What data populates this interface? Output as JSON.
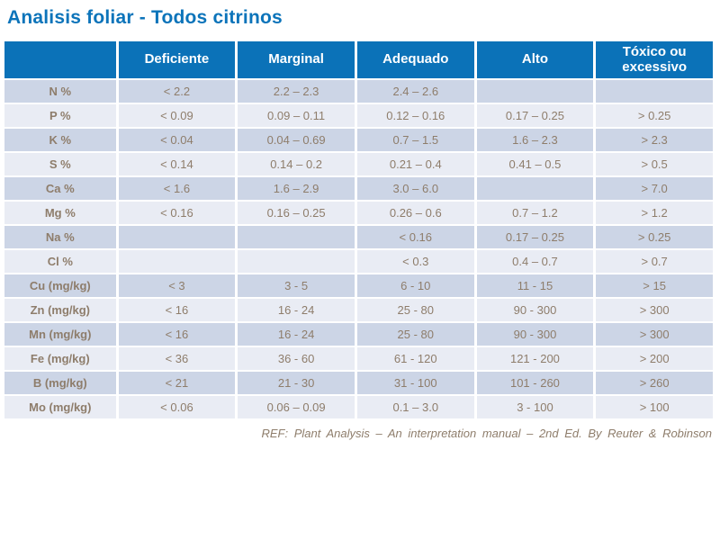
{
  "page": {
    "title": "Analisis foliar - Todos citrinos",
    "footer": "REF: Plant Analysis – An interpretation manual – 2nd Ed. By Reuter & Robinson"
  },
  "colors": {
    "title": "#0c74ba",
    "header_bg": "#0b72b8",
    "row_dark": "#ccd5e6",
    "row_light": "#e9ecf4",
    "text": "#8e7d6b"
  },
  "table": {
    "columns": [
      "Deficiente",
      "Marginal",
      "Adequado",
      "Alto",
      "Tóxico ou excessivo"
    ],
    "rows": [
      {
        "label": "N %",
        "values": [
          "< 2.2",
          "2.2 – 2.3",
          "2.4 – 2.6",
          "",
          ""
        ]
      },
      {
        "label": "P %",
        "values": [
          "< 0.09",
          "0.09 – 0.11",
          "0.12 – 0.16",
          "0.17 – 0.25",
          "> 0.25"
        ]
      },
      {
        "label": "K %",
        "values": [
          "< 0.04",
          "0.04 – 0.69",
          "0.7 – 1.5",
          "1.6 – 2.3",
          "> 2.3"
        ]
      },
      {
        "label": "S %",
        "values": [
          "< 0.14",
          "0.14 – 0.2",
          "0.21 – 0.4",
          "0.41 – 0.5",
          "> 0.5"
        ]
      },
      {
        "label": "Ca %",
        "values": [
          "< 1.6",
          "1.6 – 2.9",
          "3.0 – 6.0",
          "",
          "> 7.0"
        ]
      },
      {
        "label": "Mg %",
        "values": [
          "< 0.16",
          "0.16 – 0.25",
          "0.26 – 0.6",
          "0.7 – 1.2",
          "> 1.2"
        ]
      },
      {
        "label": "Na %",
        "values": [
          "",
          "",
          "< 0.16",
          "0.17 – 0.25",
          "> 0.25"
        ]
      },
      {
        "label": "Cl %",
        "values": [
          "",
          "",
          "< 0.3",
          "0.4 – 0.7",
          "> 0.7"
        ]
      },
      {
        "label": "Cu (mg/kg)",
        "values": [
          "< 3",
          "3 - 5",
          "6 - 10",
          "11 - 15",
          "> 15"
        ]
      },
      {
        "label": "Zn (mg/kg)",
        "values": [
          "< 16",
          "16 - 24",
          "25 - 80",
          "90 - 300",
          "> 300"
        ]
      },
      {
        "label": "Mn (mg/kg)",
        "values": [
          "< 16",
          "16 - 24",
          "25 - 80",
          "90 - 300",
          "> 300"
        ]
      },
      {
        "label": "Fe (mg/kg)",
        "values": [
          "< 36",
          "36 - 60",
          "61 - 120",
          "121 - 200",
          "> 200"
        ]
      },
      {
        "label": "B (mg/kg)",
        "values": [
          "< 21",
          "21 - 30",
          "31 - 100",
          "101 - 260",
          "> 260"
        ]
      },
      {
        "label": "Mo (mg/kg)",
        "values": [
          "< 0.06",
          "0.06 – 0.09",
          "0.1 – 3.0",
          "3 - 100",
          "> 100"
        ]
      }
    ]
  }
}
